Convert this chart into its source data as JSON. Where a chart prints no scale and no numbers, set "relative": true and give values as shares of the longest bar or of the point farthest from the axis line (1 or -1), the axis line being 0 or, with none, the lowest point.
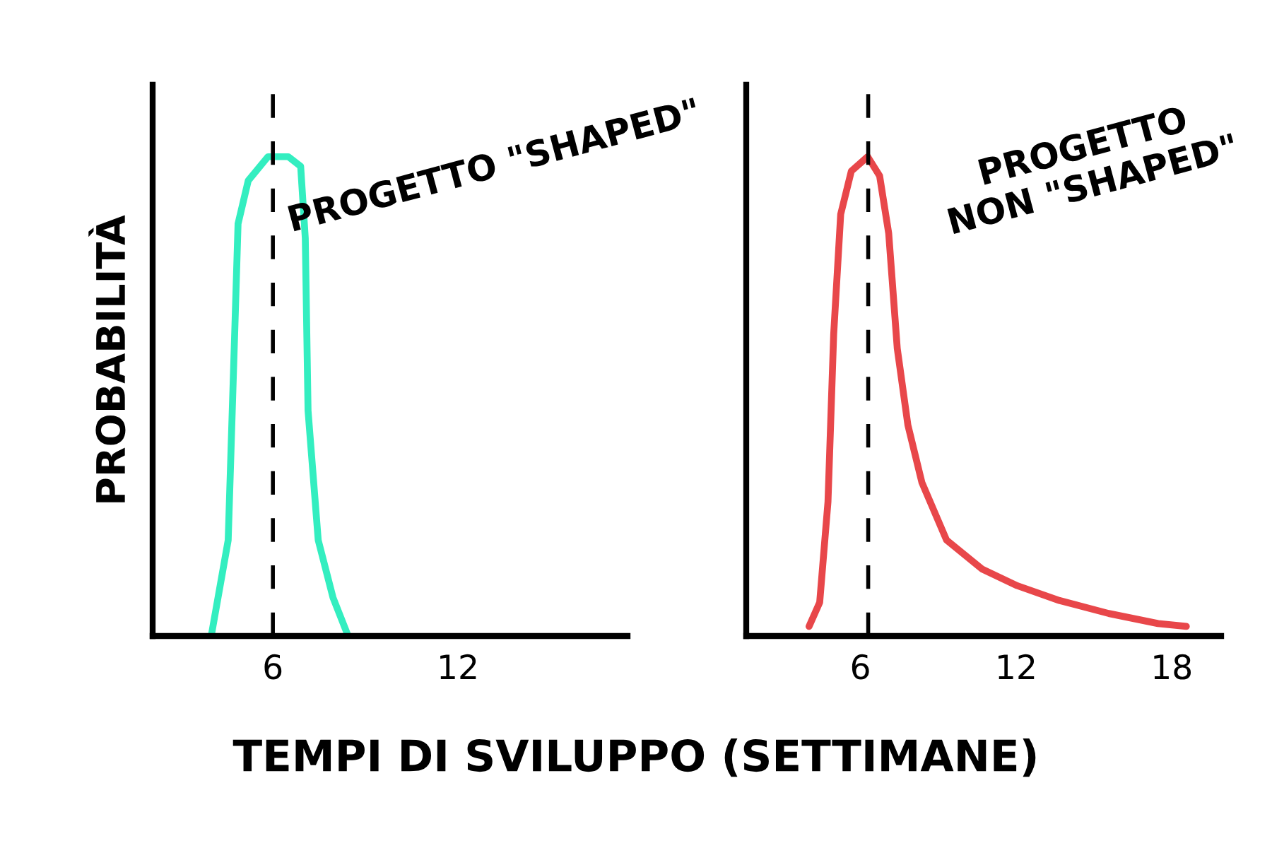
{
  "chart_data": [
    {
      "type": "line",
      "relative": true,
      "ylabel": "PROBABILITÀ",
      "xlabel": "TEMPI DI SVILUPPO (SETTIMANE)",
      "xlim": [
        2.1,
        17.5
      ],
      "xticks": [
        6,
        12
      ],
      "grid": false,
      "legend": false,
      "tick_labels": "x",
      "annotations": [
        "PROGETTO \"SHAPED\""
      ],
      "ref_lines": [
        {
          "axis": "x",
          "value": 6,
          "color": "#000000",
          "line_style": "dashed"
        }
      ],
      "series": [
        {
          "color": "#33eec0",
          "x": [
            4.0,
            4.55,
            4.77,
            4.87,
            5.2,
            5.84,
            6.5,
            6.9,
            7.05,
            7.14,
            7.47,
            7.95,
            8.44
          ],
          "values": [
            0,
            0.2,
            0.65,
            0.86,
            0.95,
            1.0,
            1.0,
            0.98,
            0.83,
            0.47,
            0.2,
            0.08,
            0
          ]
        }
      ]
    },
    {
      "type": "line",
      "relative": true,
      "xlim": [
        1.6,
        19.9
      ],
      "xticks": [
        6,
        12,
        18
      ],
      "grid": false,
      "legend": false,
      "tick_labels": "x",
      "annotations": [
        "PROGETTO\nNON \"SHAPED\""
      ],
      "ref_lines": [
        {
          "axis": "x",
          "value": 6.3,
          "color": "#000000",
          "line_style": "dashed"
        }
      ],
      "series": [
        {
          "color": "#e8474a",
          "x": [
            4.02,
            4.43,
            4.75,
            4.97,
            5.24,
            5.65,
            6.28,
            6.74,
            7.09,
            7.42,
            7.83,
            8.37,
            9.32,
            10.68,
            12.04,
            13.67,
            15.57,
            17.47,
            18.56
          ],
          "values": [
            0.02,
            0.07,
            0.28,
            0.63,
            0.88,
            0.97,
            1.0,
            0.96,
            0.84,
            0.6,
            0.44,
            0.32,
            0.2,
            0.14,
            0.105,
            0.074,
            0.047,
            0.026,
            0.02
          ]
        }
      ]
    }
  ]
}
